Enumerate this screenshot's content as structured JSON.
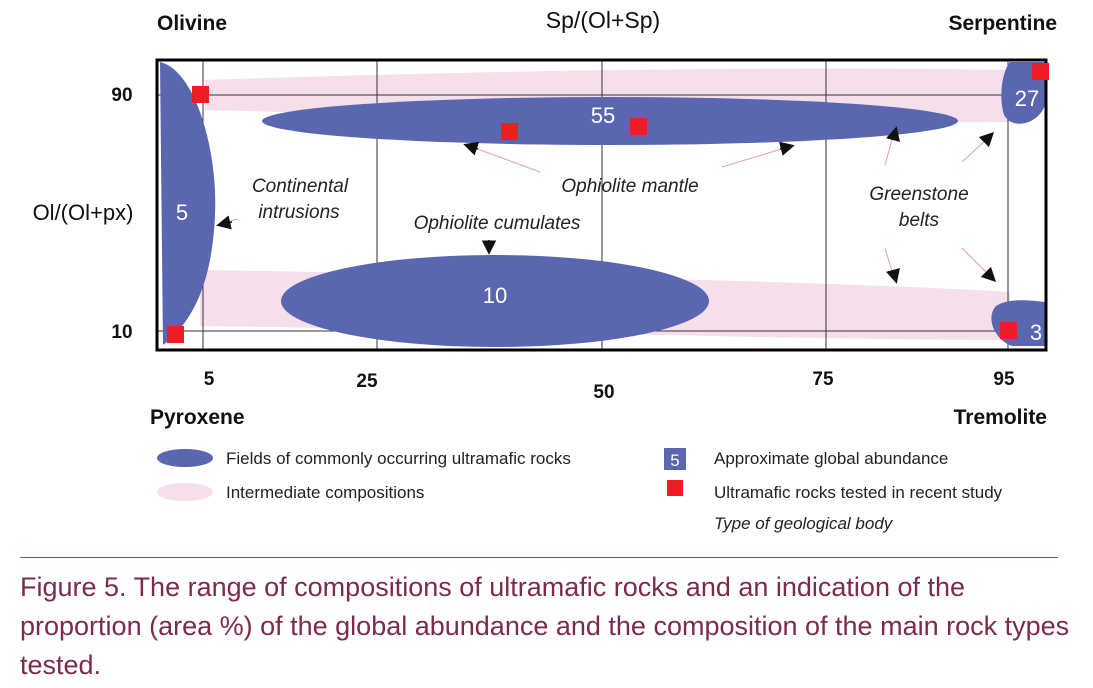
{
  "corner_labels": {
    "top_left": "Olivine",
    "top_center": "Sp/(Ol+Sp)",
    "top_right": "Serpentine",
    "bottom_left": "Pyroxene",
    "bottom_right": "Tremolite"
  },
  "y_axis": {
    "label": "Ol/(Ol+px)",
    "ticks": [
      "90",
      "10"
    ]
  },
  "x_axis": {
    "ticks": [
      "5",
      "25",
      "50",
      "75",
      "95"
    ]
  },
  "fields": {
    "olivine_strip": "5",
    "ophiolite_mantle": "55",
    "ophiolite_cumulates": "10",
    "serpentine_top": "27",
    "tremolite_bottom": "3"
  },
  "annotations": {
    "continental_line1": "Continental",
    "continental_line2": "intrusions",
    "ophiolite_mantle": "Ophiolite mantle",
    "ophiolite_cumulates": "Ophiolite cumulates",
    "greenstone_line1": "Greenstone",
    "greenstone_line2": "belts"
  },
  "legend": {
    "fields": "Fields of commonly occurring ultramafic rocks",
    "intermediate": "Intermediate compositions",
    "abundance_sample": "5",
    "abundance": "Approximate global abundance",
    "tested": "Ultramafic rocks tested in recent study",
    "body_type": "Type of geological body"
  },
  "colors": {
    "field_blue": "#5a66b0",
    "intermediate_pink": "#f5dfea",
    "tested_red": "#ee1d23",
    "caption": "#7d2a4f"
  },
  "caption": "Figure 5. The range of compositions of ultramafic rocks and an indication of the proportion (area %) of the global abundance and the composition of the main rock types tested."
}
